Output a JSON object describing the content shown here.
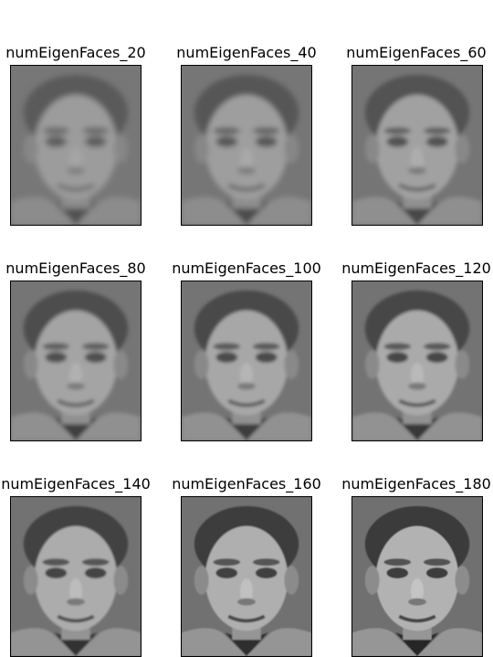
{
  "figure": {
    "panels": [
      {
        "title": "numEigenFaces_20",
        "num_eigenfaces": 20,
        "icon": "reconstructed-face"
      },
      {
        "title": "numEigenFaces_40",
        "num_eigenfaces": 40,
        "icon": "reconstructed-face"
      },
      {
        "title": "numEigenFaces_60",
        "num_eigenfaces": 60,
        "icon": "reconstructed-face"
      },
      {
        "title": "numEigenFaces_80",
        "num_eigenfaces": 80,
        "icon": "reconstructed-face"
      },
      {
        "title": "numEigenFaces_100",
        "num_eigenfaces": 100,
        "icon": "reconstructed-face"
      },
      {
        "title": "numEigenFaces_120",
        "num_eigenfaces": 120,
        "icon": "reconstructed-face"
      },
      {
        "title": "numEigenFaces_140",
        "num_eigenfaces": 140,
        "icon": "reconstructed-face"
      },
      {
        "title": "numEigenFaces_160",
        "num_eigenfaces": 160,
        "icon": "reconstructed-face"
      },
      {
        "title": "numEigenFaces_180",
        "num_eigenfaces": 180,
        "icon": "reconstructed-face"
      }
    ]
  }
}
